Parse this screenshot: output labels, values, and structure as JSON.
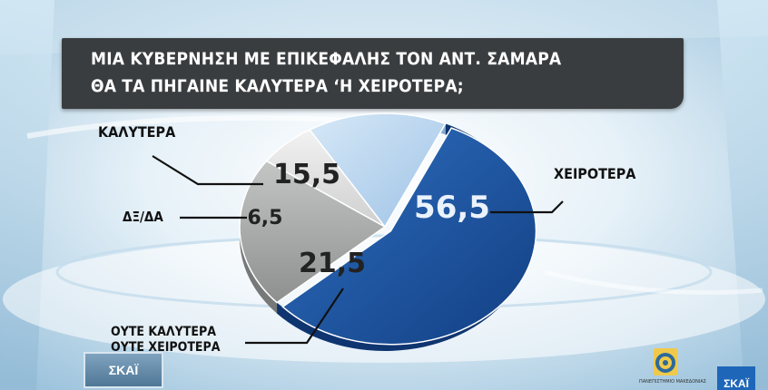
{
  "header": {
    "title_line_1": "ΜΙΑ ΚΥΒΕΡΝΗΣΗ ΜΕ ΕΠΙΚΕΦΑΛΗΣ ΤΟΝ ΑΝΤ. ΣΑΜΑΡΑ",
    "title_line_2": "ΘΑ ΤΑ ΠΗΓΑΙΝΕ ΚΑΛΥΤΕΡΑ ‘Η ΧΕΙΡΟΤΕΡΑ;"
  },
  "chart_data": {
    "type": "pie",
    "title": "ΜΙΑ ΚΥΒΕΡΝΗΣΗ ΜΕ ΕΠΙΚΕΦΑΛΗΣ ΤΟΝ ΑΝΤ. ΣΑΜΑΡΑ ΘΑ ΤΑ ΠΗΓΑΙΝΕ ΚΑΛΥΤΕΡΑ ‘Η ΧΕΙΡΟΤΕΡΑ;",
    "slices": [
      {
        "label": "ΧΕΙΡΟΤΕΡΑ",
        "value": 56.5,
        "value_text": "56,5",
        "color": "#1f58a6"
      },
      {
        "label": "ΟΥΤΕ ΚΑΛΥΤΕΡΑ ΟΥΤΕ ΧΕΙΡΟΤΕΡΑ",
        "label_lines": [
          "ΟΥΤΕ ΚΑΛΥΤΕΡΑ",
          "ΟΥΤΕ ΧΕΙΡΟΤΕΡΑ"
        ],
        "value": 21.5,
        "value_text": "21,5",
        "color": "#a9aaaa"
      },
      {
        "label": "ΔΞ/ΔΑ",
        "value": 6.5,
        "value_text": "6,5",
        "color": "#dddddd"
      },
      {
        "label": "ΚΑΛΥΤΕΡΑ",
        "value": 15.5,
        "value_text": "15,5",
        "color": "#b7d3ee"
      }
    ]
  },
  "branding": {
    "channel_logo": "ΣΚΑΪ",
    "channel_corner": "ΣΚΑΪ",
    "university": "ΠΑΝΕΠΙΣΤΗΜΙΟ ΜΑΚΕΔΟΝΙΑΣ",
    "colors": {
      "title_bar": "#3a3d3f",
      "accent_blue": "#1f58a6"
    }
  }
}
